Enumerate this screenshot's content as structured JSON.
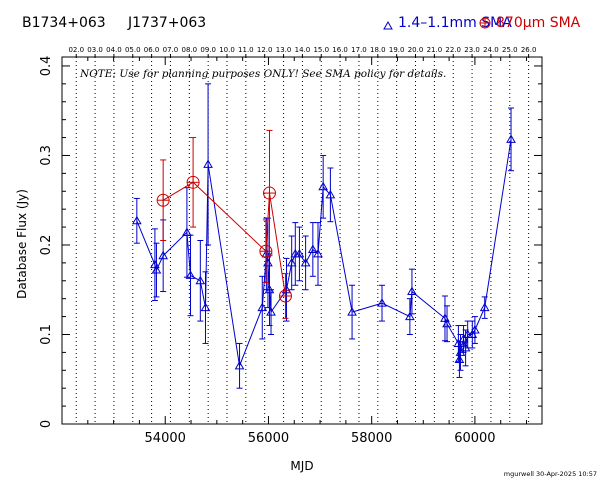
{
  "header": {
    "source1": "B1734+063",
    "source2": "J1737+063",
    "legend_blue": "1.4–1.1mm SMA",
    "legend_red": "870μm SMA"
  },
  "note": "NOTE: Use for planning purposes ONLY!  See SMA policy for details.",
  "footer": "mgurwell 30-Apr-2025 10:57",
  "chart_data": {
    "type": "scatter",
    "xlabel": "MJD",
    "ylabel": "Database Flux (Jy)",
    "xlim": [
      52000,
      61300
    ],
    "ylim": [
      0,
      0.41
    ],
    "x_ticks": [
      54000,
      56000,
      58000,
      60000
    ],
    "x_tick_labels": [
      "54000",
      "56000",
      "58000",
      "60000"
    ],
    "y_ticks": [
      0,
      0.1,
      0.2,
      0.3,
      0.4
    ],
    "y_tick_labels": [
      "0",
      "0.1",
      "0.2",
      "0.3",
      "0.4"
    ],
    "top_axis_labels": [
      "02.0",
      "03.0",
      "04.0",
      "05.0",
      "06.0",
      "07.0",
      "08.0",
      "09.0",
      "10.0",
      "11.0",
      "12.0",
      "13.0",
      "14.0",
      "15.0",
      "16.0",
      "17.0",
      "18.0",
      "19.0",
      "20.0",
      "21.0",
      "22.0",
      "23.0",
      "24.0",
      "25.0",
      "26.0"
    ],
    "top_axis_mjd": [
      52276,
      52641,
      53006,
      53371,
      53736,
      54101,
      54467,
      54832,
      55197,
      55562,
      55927,
      56293,
      56658,
      57023,
      57388,
      57754,
      58119,
      58484,
      58849,
      59215,
      59580,
      59945,
      60310,
      60676,
      61041
    ],
    "grid": "vertical dotted lines at each year",
    "series": [
      {
        "name": "1.4–1.1mm SMA",
        "color": "#0000cc",
        "marker": "triangle",
        "points": [
          {
            "x": 53450,
            "y": 0.227,
            "err": 0.025
          },
          {
            "x": 53800,
            "y": 0.178,
            "err": 0.04
          },
          {
            "x": 53830,
            "y": 0.172,
            "err": 0.03
          },
          {
            "x": 53960,
            "y": 0.188,
            "err": 0.04
          },
          {
            "x": 54420,
            "y": 0.214,
            "err": 0.05
          },
          {
            "x": 54490,
            "y": 0.166,
            "err": 0.045
          },
          {
            "x": 54680,
            "y": 0.16,
            "err": 0.045
          },
          {
            "x": 54780,
            "y": 0.13,
            "err": 0.04
          },
          {
            "x": 54830,
            "y": 0.29,
            "err": 0.09
          },
          {
            "x": 55440,
            "y": 0.065,
            "err": 0.025
          },
          {
            "x": 55880,
            "y": 0.13,
            "err": 0.035
          },
          {
            "x": 55960,
            "y": 0.19,
            "err": 0.04
          },
          {
            "x": 55990,
            "y": 0.18,
            "err": 0.05
          },
          {
            "x": 56020,
            "y": 0.15,
            "err": 0.04
          },
          {
            "x": 56050,
            "y": 0.125,
            "err": 0.025
          },
          {
            "x": 56350,
            "y": 0.15,
            "err": 0.035
          },
          {
            "x": 56450,
            "y": 0.18,
            "err": 0.03
          },
          {
            "x": 56520,
            "y": 0.19,
            "err": 0.035
          },
          {
            "x": 56600,
            "y": 0.19,
            "err": 0.03
          },
          {
            "x": 56720,
            "y": 0.18,
            "err": 0.03
          },
          {
            "x": 56860,
            "y": 0.195,
            "err": 0.03
          },
          {
            "x": 56960,
            "y": 0.19,
            "err": 0.035
          },
          {
            "x": 57060,
            "y": 0.265,
            "err": 0.035
          },
          {
            "x": 57200,
            "y": 0.256,
            "err": 0.03
          },
          {
            "x": 57620,
            "y": 0.125,
            "err": 0.03
          },
          {
            "x": 58200,
            "y": 0.135,
            "err": 0.02
          },
          {
            "x": 58740,
            "y": 0.12,
            "err": 0.02
          },
          {
            "x": 58780,
            "y": 0.148,
            "err": 0.025
          },
          {
            "x": 59420,
            "y": 0.118,
            "err": 0.025
          },
          {
            "x": 59460,
            "y": 0.112,
            "err": 0.02
          },
          {
            "x": 59680,
            "y": 0.09,
            "err": 0.02
          },
          {
            "x": 59700,
            "y": 0.072,
            "err": 0.02
          },
          {
            "x": 59720,
            "y": 0.08,
            "err": 0.02
          },
          {
            "x": 59780,
            "y": 0.095,
            "err": 0.015
          },
          {
            "x": 59820,
            "y": 0.085,
            "err": 0.02
          },
          {
            "x": 59860,
            "y": 0.1,
            "err": 0.015
          },
          {
            "x": 59950,
            "y": 0.1,
            "err": 0.015
          },
          {
            "x": 60000,
            "y": 0.105,
            "err": 0.015
          },
          {
            "x": 60190,
            "y": 0.13,
            "err": 0.012
          },
          {
            "x": 60700,
            "y": 0.318,
            "err": 0.035
          }
        ]
      },
      {
        "name": "870μm SMA",
        "color": "#cc0000",
        "marker": "circle-plus",
        "points": [
          {
            "x": 53960,
            "y": 0.25,
            "err": 0.045
          },
          {
            "x": 54540,
            "y": 0.27,
            "err": 0.05
          },
          {
            "x": 55950,
            "y": 0.193,
            "err": 0.035
          },
          {
            "x": 56020,
            "y": 0.258,
            "err": 0.07
          },
          {
            "x": 56330,
            "y": 0.143,
            "err": 0.025
          }
        ]
      }
    ]
  }
}
